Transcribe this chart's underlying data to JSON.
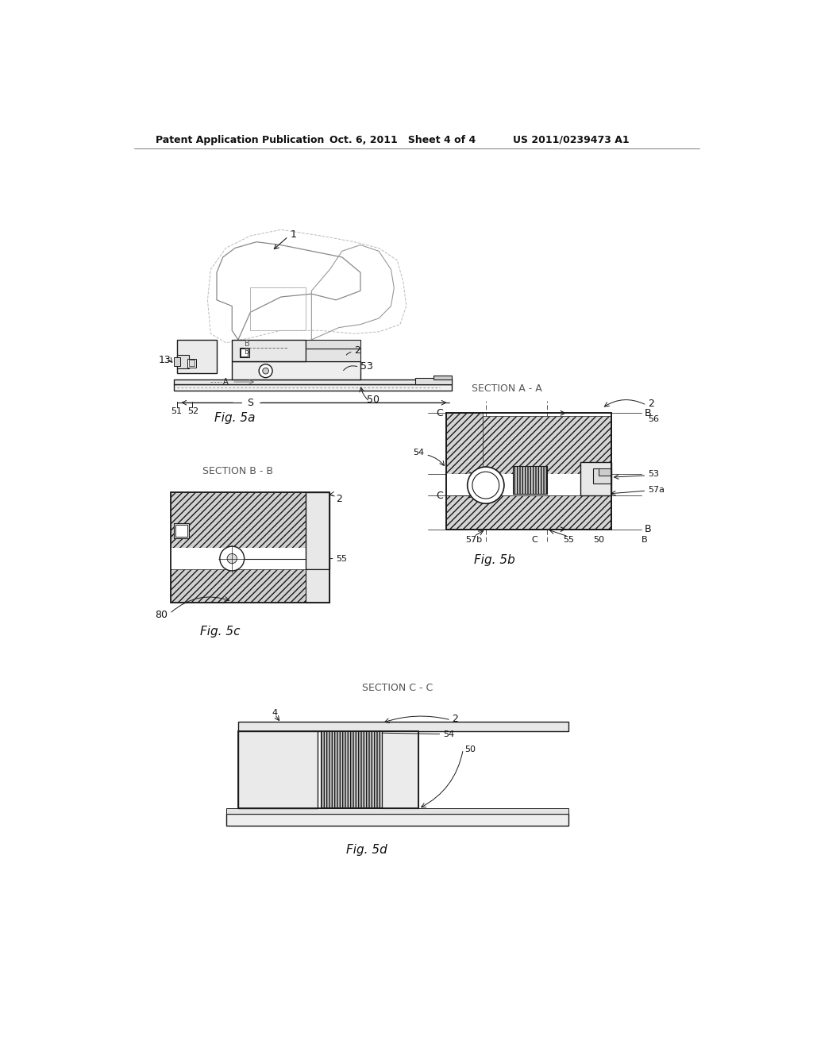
{
  "bg_color": "#ffffff",
  "header_left": "Patent Application Publication",
  "header_center": "Oct. 6, 2011   Sheet 4 of 4",
  "header_right": "US 2011/0239473 A1",
  "fig5a_label": "Fig. 5a",
  "fig5b_label": "Fig. 5b",
  "fig5c_label": "Fig. 5c",
  "fig5d_label": "Fig. 5d",
  "section_aa": "SECTION A - A",
  "section_bb": "SECTION B - B",
  "section_cc": "SECTION C - C",
  "lc": "#1a1a1a",
  "lc_light": "#888888",
  "lc_gray": "#aaaaaa"
}
